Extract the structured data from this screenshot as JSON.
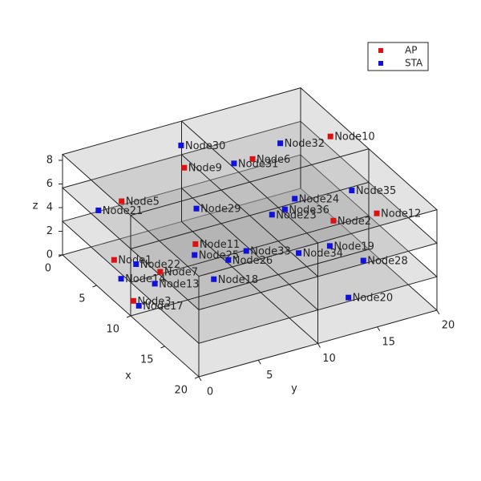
{
  "chart_data": {
    "type": "scatter3d",
    "xlabel": "x",
    "ylabel": "y",
    "zlabel": "z",
    "xlim": [
      0,
      20
    ],
    "ylim": [
      0,
      20
    ],
    "zlim": [
      0,
      8.5
    ],
    "xticks": [
      0,
      5,
      10,
      15,
      20
    ],
    "yticks": [
      0,
      5,
      10,
      15,
      20
    ],
    "zticks": [
      0,
      2,
      4,
      6,
      8
    ],
    "legend": "northeast",
    "series": [
      {
        "name": "AP",
        "color": "#dd1111",
        "labels": [
          "Node10",
          "Node9",
          "Node6",
          "Node5",
          "Node2",
          "Node12",
          "Node11",
          "Node1",
          "Node7",
          "Node3"
        ],
        "x": [
          4.9,
          3.7,
          5,
          5.7,
          11.1,
          11.7,
          9.2,
          3.9,
          7,
          9.7
        ],
        "y": [
          19.7,
          8.1,
          13.1,
          1.7,
          16.4,
          19.7,
          5.9,
          2.1,
          4.2,
          0.4
        ],
        "z": [
          7,
          7,
          7,
          7,
          4,
          4,
          4,
          1,
          1,
          1
        ]
      },
      {
        "name": "STA",
        "color": "#1111dd",
        "labels": [
          "Node30",
          "Node32",
          "Node31",
          "Node35",
          "Node21",
          "Node24",
          "Node29",
          "Node36",
          "Node23",
          "Node25",
          "Node26",
          "Node33",
          "Node19",
          "Node34",
          "Node22",
          "Node14",
          "Node13",
          "Node18",
          "Node28",
          "Node17",
          "Node20"
        ],
        "x": [
          0.8,
          4,
          4.9,
          12.4,
          1.6,
          7,
          4.8,
          8,
          8.2,
          6.1,
          7.9,
          7.4,
          9.7,
          9.5,
          5.2,
          6.5,
          8.3,
          9.8,
          12.7,
          10.5,
          16.8
        ],
        "y": [
          9.5,
          16,
          11.6,
          17.2,
          2.1,
          15.5,
          8.5,
          14.1,
          12.9,
          7.6,
          9.4,
          11.2,
          16.9,
          14.4,
          3.2,
          1.2,
          3,
          7.1,
          18,
          0.4,
          14.4
        ],
        "z": [
          7,
          7,
          7,
          7,
          4,
          4,
          4,
          4,
          4,
          1,
          1,
          1,
          1,
          1,
          1,
          1,
          1,
          1,
          1,
          1,
          1
        ]
      }
    ]
  }
}
